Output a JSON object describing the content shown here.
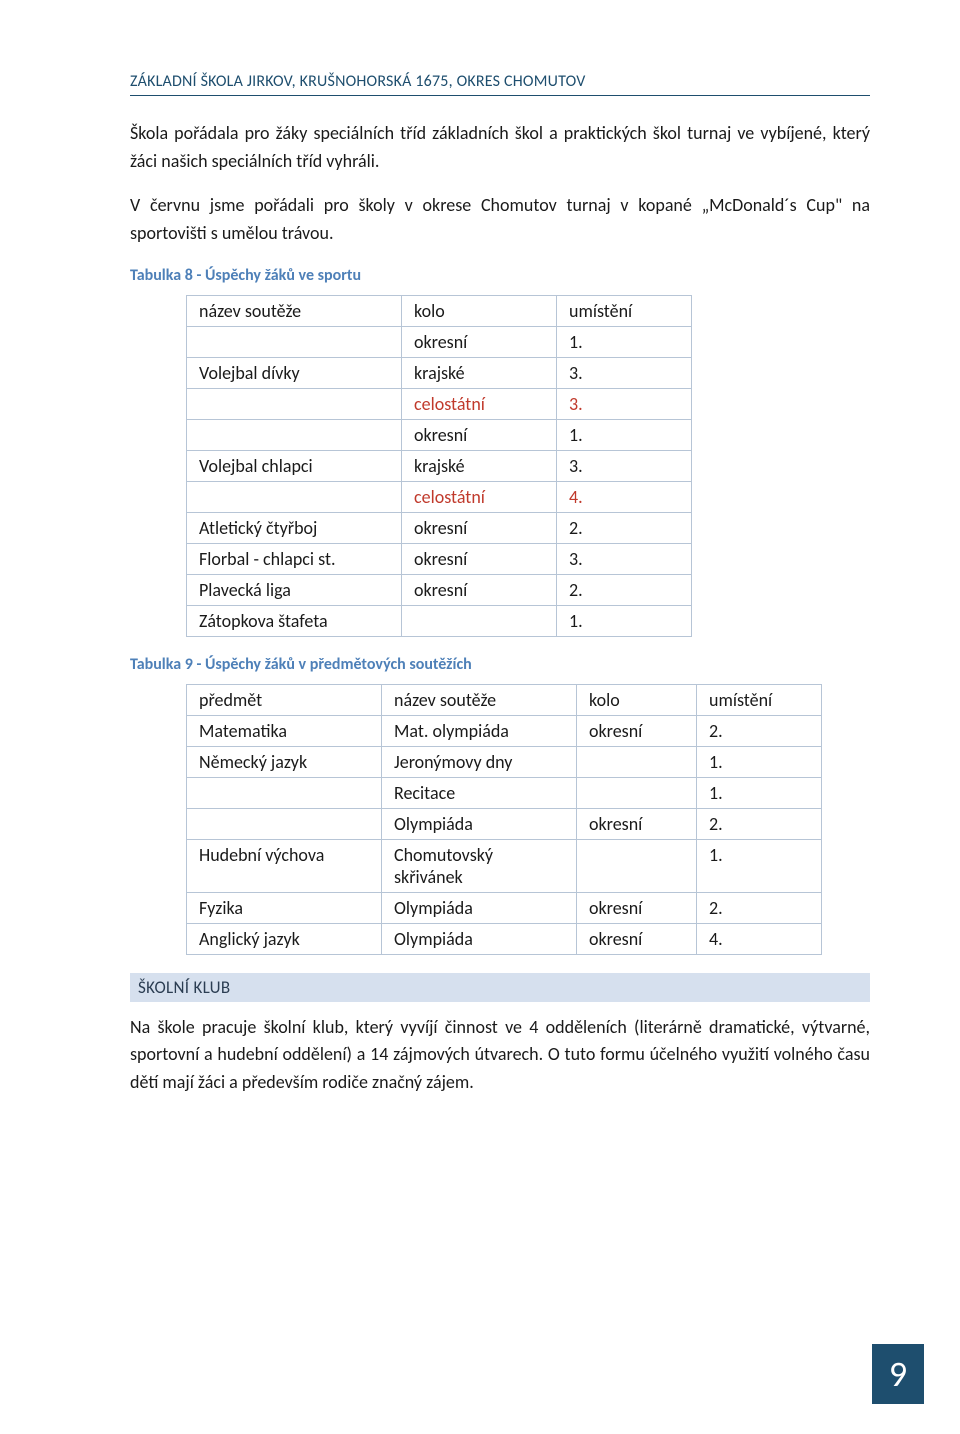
{
  "header": "ZÁKLADNÍ ŠKOLA JIRKOV, KRUŠNOHORSKÁ 1675, OKRES CHOMUTOV",
  "para1": "Škola pořádala pro žáky speciálních tříd základních škol a praktických škol turnaj ve vybíjené, který žáci našich speciálních tříd vyhráli.",
  "para2": "V červnu jsme pořádali pro školy v okrese Chomutov turnaj v kopané „McDonald´s Cup\" na sportovišti s umělou trávou.",
  "caption1": "Tabulka 8 - Úspěchy žáků ve sportu",
  "table1": {
    "head": [
      "název soutěže",
      "kolo",
      "umístění"
    ],
    "rows": [
      {
        "c": [
          "",
          "okresní",
          "1."
        ]
      },
      {
        "c": [
          "Volejbal dívky",
          "krajské",
          "3."
        ]
      },
      {
        "c": [
          "",
          "celostátní",
          "3."
        ],
        "red": [
          1,
          2
        ]
      },
      {
        "c": [
          "",
          "okresní",
          "1."
        ]
      },
      {
        "c": [
          "Volejbal chlapci",
          "krajské",
          "3."
        ]
      },
      {
        "c": [
          "",
          "celostátní",
          "4."
        ],
        "red": [
          1,
          2
        ]
      },
      {
        "c": [
          "Atletický čtyřboj",
          "okresní",
          "2."
        ]
      },
      {
        "c": [
          "Florbal - chlapci st.",
          "okresní",
          "3."
        ]
      },
      {
        "c": [
          "Plavecká liga",
          "okresní",
          "2."
        ]
      },
      {
        "c": [
          "Zátopkova štafeta",
          "",
          "1."
        ]
      }
    ]
  },
  "caption2": "Tabulka 9 - Úspěchy žáků v předmětových soutěžích",
  "table2": {
    "head": [
      "předmět",
      "název soutěže",
      "kolo",
      "umístění"
    ],
    "rows": [
      [
        "Matematika",
        "Mat. olympiáda",
        "okresní",
        "2."
      ],
      [
        "Německý jazyk",
        "Jeronýmovy dny",
        "",
        "1."
      ],
      [
        "",
        "Recitace",
        "",
        "1."
      ],
      [
        "",
        "Olympiáda",
        "okresní",
        "2."
      ],
      [
        "Hudební výchova",
        "Chomutovský skřivánek",
        "",
        "1."
      ],
      [
        "Fyzika",
        "Olympiáda",
        "okresní",
        "2."
      ],
      [
        "Anglický jazyk",
        "Olympiáda",
        "okresní",
        "4."
      ]
    ]
  },
  "sectionHeading": "ŠKOLNÍ KLUB",
  "para3": "Na škole pracuje školní klub, který vyvíjí činnost ve 4 odděleních (literárně dramatické, výtvarné, sportovní a hudební oddělení) a 14 zájmových útvarech. O tuto formu účelného využití volného času dětí mají žáci a především rodiče značný zájem.",
  "pageNumber": "9"
}
